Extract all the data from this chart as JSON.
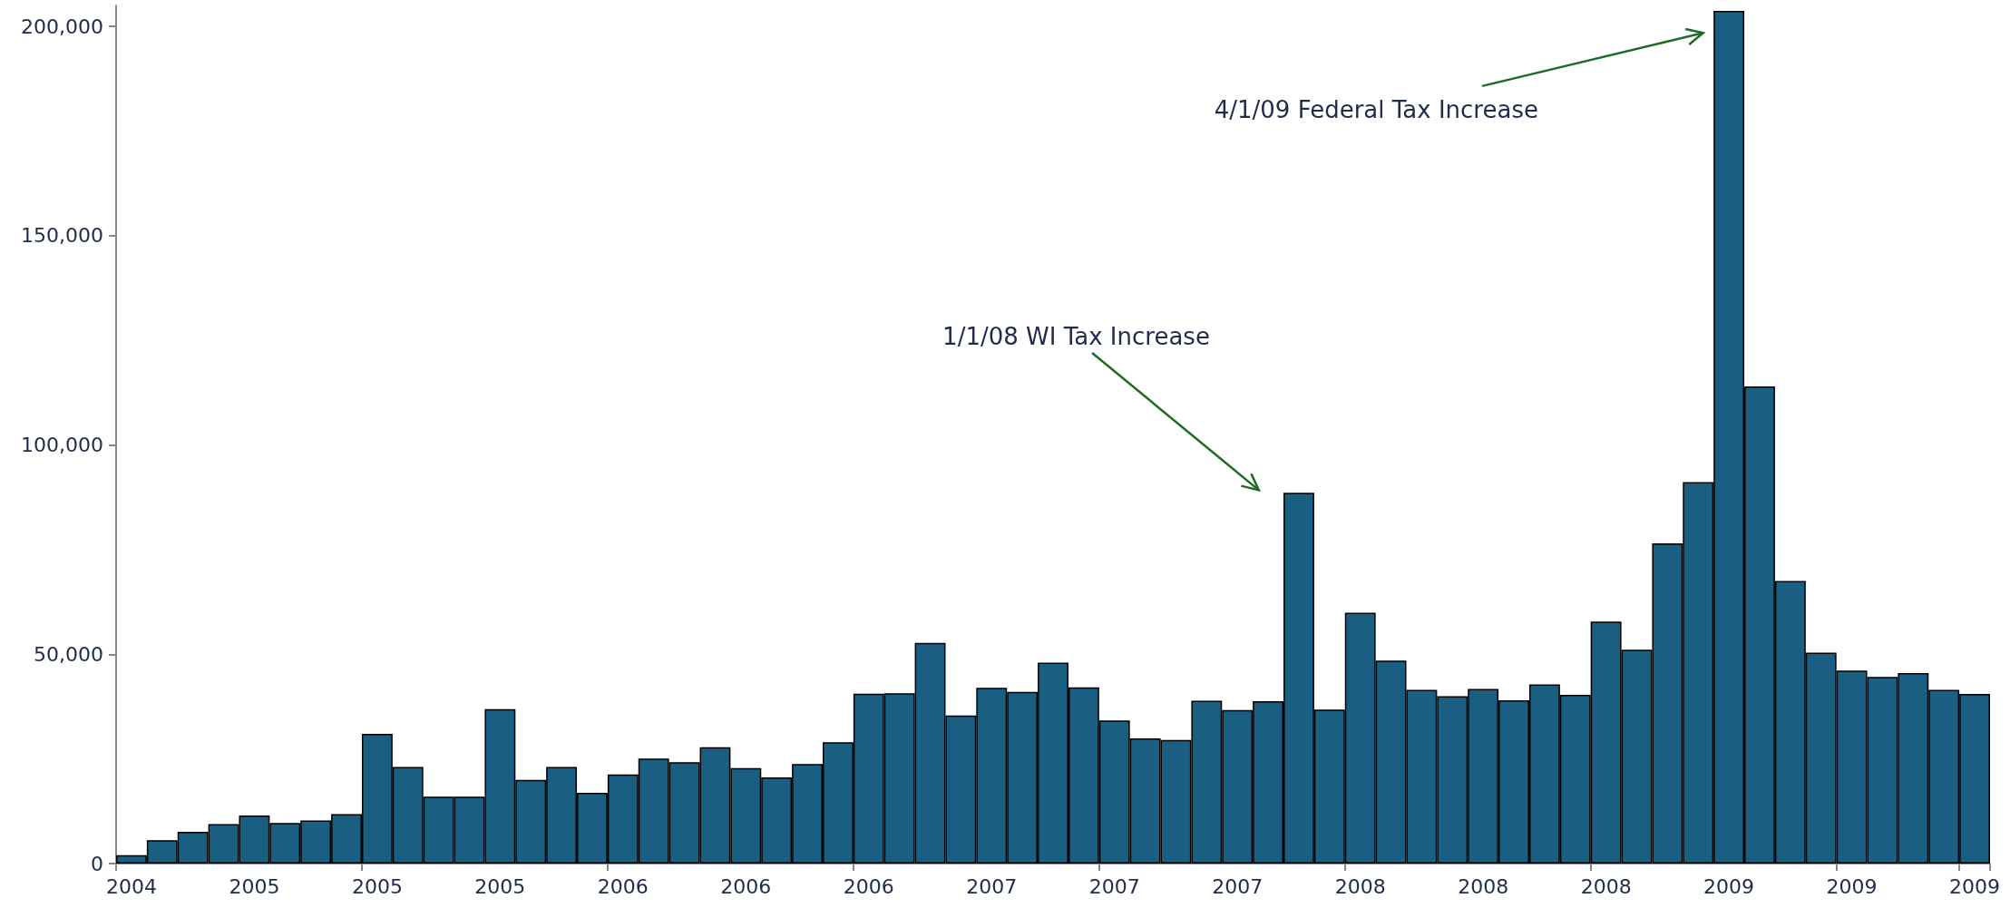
{
  "chart_data": {
    "type": "bar",
    "categories": [
      "2004",
      null,
      null,
      null,
      "2005",
      null,
      null,
      null,
      "2005",
      null,
      null,
      null,
      "2005",
      null,
      null,
      null,
      "2006",
      null,
      null,
      null,
      "2006",
      null,
      null,
      null,
      "2006",
      null,
      null,
      null,
      "2007",
      null,
      null,
      null,
      "2007",
      null,
      null,
      null,
      "2007",
      null,
      null,
      null,
      "2008",
      null,
      null,
      null,
      "2008",
      null,
      null,
      null,
      "2008",
      null,
      null,
      null,
      "2009",
      null,
      null,
      null,
      "2009",
      null,
      null,
      null,
      "2009"
    ],
    "values": [
      2000,
      5600,
      7600,
      9400,
      11500,
      9700,
      10300,
      11800,
      31000,
      23100,
      16000,
      16000,
      36900,
      20000,
      23100,
      16900,
      21300,
      25100,
      24200,
      27800,
      22800,
      20600,
      23800,
      29000,
      40600,
      40700,
      52700,
      35400,
      42000,
      41000,
      48000,
      42100,
      34200,
      29900,
      29500,
      38900,
      36700,
      38800,
      88600,
      36800,
      59900,
      48500,
      41500,
      40000,
      41700,
      39000,
      42800,
      40300,
      57800,
      51100,
      76500,
      91100,
      203700,
      114000,
      67500,
      50400,
      46100,
      44600,
      45500,
      41500,
      40500
    ],
    "color": "#1a5f82",
    "ylim": [
      0,
      205000
    ],
    "yticks": [
      0,
      {
        "value": 50000,
        "label": "50,000"
      },
      {
        "value": 100000,
        "label": "100,000"
      },
      {
        "value": 150000,
        "label": "150,000"
      },
      {
        "value": 200000,
        "label": "200,000"
      }
    ],
    "grid": false,
    "annotations": [
      "1/1/08 WI Tax Increase",
      "4/1/09 Federal Tax Increase"
    ]
  }
}
